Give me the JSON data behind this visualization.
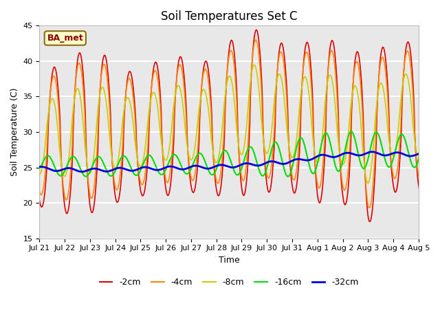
{
  "title": "Soil Temperatures Set C",
  "xlabel": "Time",
  "ylabel": "Soil Temperature (C)",
  "ylim": [
    15,
    45
  ],
  "xtick_labels": [
    "Jul 21",
    "Jul 22",
    "Jul 23",
    "Jul 24",
    "Jul 25",
    "Jul 26",
    "Jul 27",
    "Jul 28",
    "Jul 29",
    "Jul 30",
    "Jul 31",
    "Aug 1",
    "Aug 2",
    "Aug 3",
    "Aug 4",
    "Aug 5"
  ],
  "legend_labels": [
    "-2cm",
    "-4cm",
    "-8cm",
    "-16cm",
    "-32cm"
  ],
  "colors": [
    "#dd0000",
    "#ff8800",
    "#cccc00",
    "#00dd00",
    "#0000dd"
  ],
  "linewidths": [
    1.2,
    1.2,
    1.2,
    1.5,
    2.0
  ],
  "annotation_text": "BA_met",
  "bg_color": "#e8e8e8",
  "grid_color": "white",
  "title_fontsize": 12,
  "label_fontsize": 9,
  "tick_fontsize": 8
}
